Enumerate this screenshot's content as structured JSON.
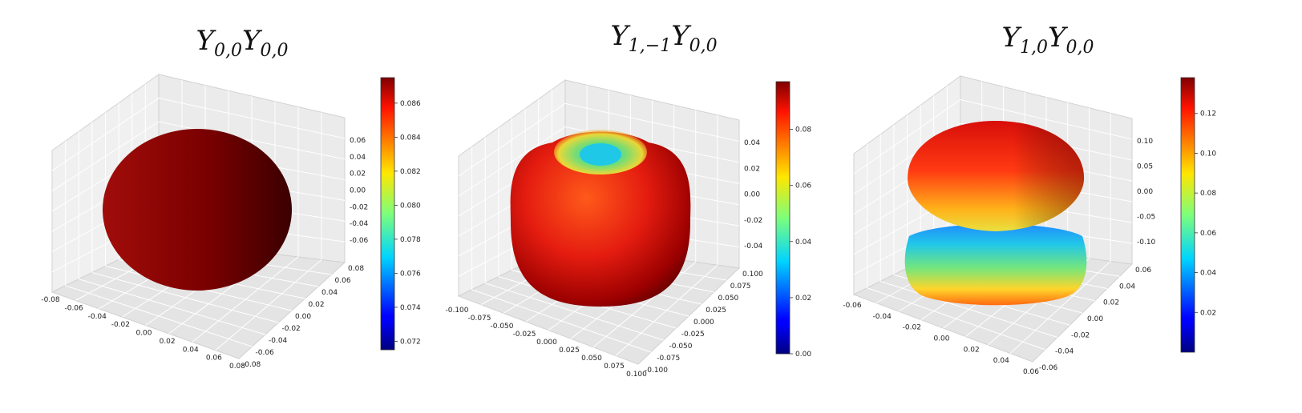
{
  "chart_data": [
    {
      "type": "surface3d",
      "title": {
        "base1": "Y",
        "sub1": "0,0",
        "base2": "Y",
        "sub2": "0,0"
      },
      "shape": "sphere",
      "colormap": "jet",
      "x_ticks": [
        "-0.08",
        "-0.06",
        "-0.04",
        "-0.02",
        "0.00",
        "0.02",
        "0.04",
        "0.06",
        "0.08"
      ],
      "y_ticks": [
        "-0.08",
        "-0.06",
        "-0.04",
        "-0.02",
        "0.00",
        "0.02",
        "0.04",
        "0.06",
        "0.08"
      ],
      "z_ticks": [
        "-0.06",
        "-0.04",
        "-0.02",
        "0.00",
        "0.02",
        "0.04",
        "0.06"
      ],
      "colorbar": {
        "min": 0.0715,
        "max": 0.0875,
        "ticks": [
          "0.072",
          "0.074",
          "0.076",
          "0.078",
          "0.080",
          "0.082",
          "0.084",
          "0.086"
        ]
      }
    },
    {
      "type": "surface3d",
      "title": {
        "base1": "Y",
        "sub1": "1,−1",
        "base2": "Y",
        "sub2": "0,0"
      },
      "shape": "torus",
      "colormap": "jet",
      "x_ticks": [
        "-0.100",
        "-0.075",
        "-0.050",
        "-0.025",
        "0.000",
        "0.025",
        "0.050",
        "0.075",
        "0.100"
      ],
      "y_ticks": [
        "-0.100",
        "-0.075",
        "-0.050",
        "-0.025",
        "0.000",
        "0.025",
        "0.050",
        "0.075",
        "0.100"
      ],
      "z_ticks": [
        "-0.04",
        "-0.02",
        "0.00",
        "0.02",
        "0.04"
      ],
      "colorbar": {
        "min": 0.0,
        "max": 0.097,
        "ticks": [
          "0.00",
          "0.02",
          "0.04",
          "0.06",
          "0.08"
        ]
      }
    },
    {
      "type": "surface3d",
      "title": {
        "base1": "Y",
        "sub1": "1,0",
        "base2": "Y",
        "sub2": "0,0"
      },
      "shape": "dumbbell",
      "colormap": "jet",
      "x_ticks": [
        "-0.06",
        "-0.04",
        "-0.02",
        "0.00",
        "0.02",
        "0.04",
        "0.06"
      ],
      "y_ticks": [
        "-0.06",
        "-0.04",
        "-0.02",
        "0.00",
        "0.02",
        "0.04",
        "0.06"
      ],
      "z_ticks": [
        "-0.10",
        "-0.05",
        "0.00",
        "0.05",
        "0.10"
      ],
      "colorbar": {
        "min": 0.0,
        "max": 0.138,
        "ticks": [
          "0.02",
          "0.04",
          "0.06",
          "0.08",
          "0.10",
          "0.12"
        ]
      }
    }
  ]
}
